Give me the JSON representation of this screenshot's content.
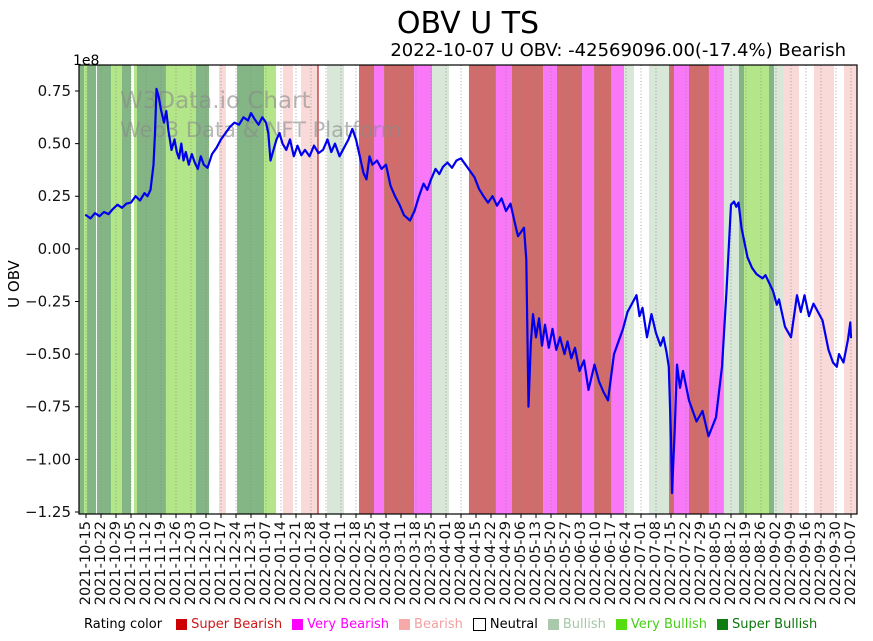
{
  "header": {
    "title": "OBV U TS",
    "subtitle": "2022-10-07 U OBV: -42569096.00(-17.4%) Bearish"
  },
  "watermark": {
    "line1": "W3Data.io Chart",
    "line2": "Web3 Data & NFT Platform"
  },
  "axes": {
    "y_label": "U OBV",
    "offset_label": "1e8",
    "y_ticks": [
      "0.75",
      "0.50",
      "0.25",
      "0.00",
      "−0.25",
      "−0.50",
      "−0.75",
      "−1.00",
      "−1.25"
    ],
    "y_tick_values": [
      0.75,
      0.5,
      0.25,
      0.0,
      -0.25,
      -0.5,
      -0.75,
      -1.0,
      -1.25
    ]
  },
  "chart_data": {
    "type": "line",
    "title": "OBV U TS",
    "subtitle": "2022-10-07 U OBV: -42569096.00(-17.4%) Bearish",
    "xlabel": "",
    "ylabel": "U OBV",
    "y_scale_factor": "1e8",
    "ylim": [
      -1.26,
      0.87
    ],
    "grid": "vertical-dotted",
    "line_color": "#0000ee",
    "final_value": -42569096.0,
    "final_change_pct": -17.4,
    "final_rating": "Bearish",
    "x": [
      "2021-10-15",
      "2021-10-22",
      "2021-10-29",
      "2021-11-05",
      "2021-11-12",
      "2021-11-19",
      "2021-11-26",
      "2021-12-03",
      "2021-12-10",
      "2021-12-17",
      "2021-12-24",
      "2021-12-31",
      "2022-01-07",
      "2022-01-14",
      "2022-01-21",
      "2022-01-28",
      "2022-02-04",
      "2022-02-11",
      "2022-02-18",
      "2022-02-25",
      "2022-03-04",
      "2022-03-11",
      "2022-03-18",
      "2022-03-25",
      "2022-04-01",
      "2022-04-08",
      "2022-04-15",
      "2022-04-22",
      "2022-04-29",
      "2022-05-06",
      "2022-05-13",
      "2022-05-20",
      "2022-05-27",
      "2022-06-03",
      "2022-06-10",
      "2022-06-17",
      "2022-06-24",
      "2022-07-01",
      "2022-07-08",
      "2022-07-15",
      "2022-07-22",
      "2022-07-29",
      "2022-08-05",
      "2022-08-12",
      "2022-08-19",
      "2022-08-26",
      "2022-09-02",
      "2022-09-09",
      "2022-09-16",
      "2022-09-23",
      "2022-09-30",
      "2022-10-07"
    ],
    "weekly_values_1e8": [
      0.16,
      0.17,
      0.2,
      0.22,
      0.26,
      0.66,
      0.46,
      0.44,
      0.39,
      0.52,
      0.6,
      0.645,
      0.6,
      0.49,
      0.48,
      0.46,
      0.51,
      0.46,
      0.52,
      0.41,
      0.4,
      0.18,
      0.22,
      0.33,
      0.4,
      0.43,
      0.3,
      0.23,
      0.18,
      0.08,
      -0.42,
      -0.39,
      -0.46,
      -0.56,
      -0.62,
      -0.52,
      -0.31,
      -0.37,
      -0.4,
      -1.1,
      -0.72,
      -0.78,
      -0.8,
      0.21,
      -0.04,
      -0.13,
      -0.26,
      -0.42,
      -0.29,
      -0.33,
      -0.56,
      -0.43
    ],
    "dense_points_week_value": [
      [
        0,
        0.16
      ],
      [
        0.3,
        0.145
      ],
      [
        0.6,
        0.17
      ],
      [
        0.9,
        0.155
      ],
      [
        1.2,
        0.175
      ],
      [
        1.5,
        0.165
      ],
      [
        1.8,
        0.19
      ],
      [
        2.1,
        0.21
      ],
      [
        2.4,
        0.195
      ],
      [
        2.7,
        0.215
      ],
      [
        3.0,
        0.22
      ],
      [
        3.3,
        0.25
      ],
      [
        3.6,
        0.23
      ],
      [
        3.9,
        0.265
      ],
      [
        4.1,
        0.25
      ],
      [
        4.3,
        0.28
      ],
      [
        4.5,
        0.4
      ],
      [
        4.6,
        0.55
      ],
      [
        4.7,
        0.76
      ],
      [
        4.85,
        0.72
      ],
      [
        5.0,
        0.66
      ],
      [
        5.2,
        0.6
      ],
      [
        5.35,
        0.655
      ],
      [
        5.5,
        0.56
      ],
      [
        5.7,
        0.47
      ],
      [
        5.9,
        0.52
      ],
      [
        6.05,
        0.46
      ],
      [
        6.2,
        0.43
      ],
      [
        6.35,
        0.5
      ],
      [
        6.5,
        0.42
      ],
      [
        6.65,
        0.46
      ],
      [
        6.85,
        0.4
      ],
      [
        7.05,
        0.45
      ],
      [
        7.25,
        0.41
      ],
      [
        7.45,
        0.38
      ],
      [
        7.65,
        0.44
      ],
      [
        7.85,
        0.4
      ],
      [
        8.1,
        0.385
      ],
      [
        8.4,
        0.45
      ],
      [
        8.7,
        0.48
      ],
      [
        9.0,
        0.52
      ],
      [
        9.3,
        0.55
      ],
      [
        9.6,
        0.58
      ],
      [
        9.9,
        0.6
      ],
      [
        10.2,
        0.59
      ],
      [
        10.5,
        0.625
      ],
      [
        10.8,
        0.61
      ],
      [
        11.0,
        0.645
      ],
      [
        11.25,
        0.615
      ],
      [
        11.5,
        0.59
      ],
      [
        11.75,
        0.625
      ],
      [
        12.0,
        0.6
      ],
      [
        12.15,
        0.55
      ],
      [
        12.3,
        0.42
      ],
      [
        12.5,
        0.47
      ],
      [
        12.7,
        0.52
      ],
      [
        12.9,
        0.55
      ],
      [
        13.1,
        0.5
      ],
      [
        13.35,
        0.47
      ],
      [
        13.6,
        0.52
      ],
      [
        13.85,
        0.44
      ],
      [
        14.1,
        0.49
      ],
      [
        14.35,
        0.445
      ],
      [
        14.6,
        0.47
      ],
      [
        14.9,
        0.44
      ],
      [
        15.2,
        0.49
      ],
      [
        15.5,
        0.455
      ],
      [
        15.8,
        0.47
      ],
      [
        16.1,
        0.52
      ],
      [
        16.35,
        0.46
      ],
      [
        16.6,
        0.5
      ],
      [
        16.9,
        0.44
      ],
      [
        17.2,
        0.48
      ],
      [
        17.5,
        0.52
      ],
      [
        17.75,
        0.57
      ],
      [
        18.0,
        0.52
      ],
      [
        18.25,
        0.44
      ],
      [
        18.5,
        0.36
      ],
      [
        18.7,
        0.33
      ],
      [
        18.9,
        0.44
      ],
      [
        19.1,
        0.4
      ],
      [
        19.4,
        0.42
      ],
      [
        19.7,
        0.38
      ],
      [
        20.0,
        0.4
      ],
      [
        20.3,
        0.3
      ],
      [
        20.6,
        0.25
      ],
      [
        20.9,
        0.21
      ],
      [
        21.2,
        0.16
      ],
      [
        21.6,
        0.135
      ],
      [
        21.9,
        0.18
      ],
      [
        22.2,
        0.25
      ],
      [
        22.5,
        0.31
      ],
      [
        22.75,
        0.28
      ],
      [
        23.0,
        0.33
      ],
      [
        23.3,
        0.38
      ],
      [
        23.55,
        0.355
      ],
      [
        23.8,
        0.39
      ],
      [
        24.1,
        0.41
      ],
      [
        24.4,
        0.385
      ],
      [
        24.7,
        0.42
      ],
      [
        25.0,
        0.43
      ],
      [
        25.3,
        0.4
      ],
      [
        25.6,
        0.37
      ],
      [
        25.9,
        0.34
      ],
      [
        26.2,
        0.285
      ],
      [
        26.5,
        0.25
      ],
      [
        26.8,
        0.22
      ],
      [
        27.1,
        0.25
      ],
      [
        27.4,
        0.205
      ],
      [
        27.7,
        0.24
      ],
      [
        28.0,
        0.18
      ],
      [
        28.3,
        0.215
      ],
      [
        28.6,
        0.12
      ],
      [
        28.8,
        0.06
      ],
      [
        29.0,
        0.08
      ],
      [
        29.2,
        0.1
      ],
      [
        29.35,
        -0.05
      ],
      [
        29.5,
        -0.75
      ],
      [
        29.65,
        -0.45
      ],
      [
        29.8,
        -0.31
      ],
      [
        30.0,
        -0.42
      ],
      [
        30.2,
        -0.33
      ],
      [
        30.4,
        -0.46
      ],
      [
        30.6,
        -0.36
      ],
      [
        30.85,
        -0.47
      ],
      [
        31.1,
        -0.38
      ],
      [
        31.35,
        -0.48
      ],
      [
        31.6,
        -0.42
      ],
      [
        31.9,
        -0.5
      ],
      [
        32.1,
        -0.44
      ],
      [
        32.35,
        -0.52
      ],
      [
        32.6,
        -0.47
      ],
      [
        32.9,
        -0.58
      ],
      [
        33.2,
        -0.53
      ],
      [
        33.5,
        -0.67
      ],
      [
        33.9,
        -0.55
      ],
      [
        34.2,
        -0.63
      ],
      [
        34.5,
        -0.68
      ],
      [
        34.8,
        -0.72
      ],
      [
        35.2,
        -0.5
      ],
      [
        35.5,
        -0.44
      ],
      [
        35.8,
        -0.38
      ],
      [
        36.1,
        -0.3
      ],
      [
        36.4,
        -0.26
      ],
      [
        36.7,
        -0.22
      ],
      [
        36.9,
        -0.32
      ],
      [
        37.1,
        -0.28
      ],
      [
        37.4,
        -0.42
      ],
      [
        37.7,
        -0.31
      ],
      [
        38.0,
        -0.4
      ],
      [
        38.3,
        -0.46
      ],
      [
        38.5,
        -0.42
      ],
      [
        38.7,
        -0.49
      ],
      [
        38.85,
        -0.56
      ],
      [
        39.0,
        -0.9
      ],
      [
        39.07,
        -1.16
      ],
      [
        39.25,
        -0.85
      ],
      [
        39.4,
        -0.55
      ],
      [
        39.6,
        -0.66
      ],
      [
        39.8,
        -0.58
      ],
      [
        40.2,
        -0.72
      ],
      [
        40.7,
        -0.82
      ],
      [
        41.1,
        -0.77
      ],
      [
        41.5,
        -0.89
      ],
      [
        42.0,
        -0.8
      ],
      [
        42.4,
        -0.56
      ],
      [
        42.7,
        -0.2
      ],
      [
        43.0,
        0.21
      ],
      [
        43.2,
        0.225
      ],
      [
        43.35,
        0.2
      ],
      [
        43.5,
        0.22
      ],
      [
        43.7,
        0.1
      ],
      [
        43.9,
        0.03
      ],
      [
        44.1,
        -0.04
      ],
      [
        44.4,
        -0.09
      ],
      [
        44.7,
        -0.12
      ],
      [
        45.1,
        -0.14
      ],
      [
        45.3,
        -0.125
      ],
      [
        45.8,
        -0.2
      ],
      [
        46.05,
        -0.265
      ],
      [
        46.2,
        -0.24
      ],
      [
        46.6,
        -0.37
      ],
      [
        47.0,
        -0.42
      ],
      [
        47.4,
        -0.22
      ],
      [
        47.65,
        -0.3
      ],
      [
        47.9,
        -0.22
      ],
      [
        48.2,
        -0.32
      ],
      [
        48.5,
        -0.26
      ],
      [
        49.1,
        -0.34
      ],
      [
        49.5,
        -0.48
      ],
      [
        49.8,
        -0.54
      ],
      [
        50.05,
        -0.56
      ],
      [
        50.2,
        -0.5
      ],
      [
        50.5,
        -0.54
      ],
      [
        50.8,
        -0.43
      ],
      [
        50.95,
        -0.35
      ],
      [
        51.0,
        -0.42
      ]
    ],
    "rating_bands_week_ranges": [
      {
        "start": -0.47,
        "end": -0.13,
        "rating": "super_bullish"
      },
      {
        "start": -0.13,
        "end": 0.07,
        "rating": "very_bullish"
      },
      {
        "start": 0.07,
        "end": 0.67,
        "rating": "super_bullish"
      },
      {
        "start": 0.67,
        "end": 0.73,
        "rating": "neutral"
      },
      {
        "start": 0.73,
        "end": 1.67,
        "rating": "super_bullish"
      },
      {
        "start": 1.67,
        "end": 2.4,
        "rating": "very_bullish"
      },
      {
        "start": 2.4,
        "end": 3.0,
        "rating": "super_bullish"
      },
      {
        "start": 3.0,
        "end": 3.2,
        "rating": "neutral"
      },
      {
        "start": 3.2,
        "end": 3.4,
        "rating": "very_bullish"
      },
      {
        "start": 3.4,
        "end": 5.33,
        "rating": "super_bullish"
      },
      {
        "start": 5.33,
        "end": 7.33,
        "rating": "very_bullish"
      },
      {
        "start": 7.33,
        "end": 8.2,
        "rating": "super_bullish"
      },
      {
        "start": 8.2,
        "end": 8.87,
        "rating": "neutral"
      },
      {
        "start": 8.87,
        "end": 9.33,
        "rating": "bearish"
      },
      {
        "start": 9.33,
        "end": 10.07,
        "rating": "neutral"
      },
      {
        "start": 10.07,
        "end": 11.87,
        "rating": "super_bullish"
      },
      {
        "start": 11.87,
        "end": 12.67,
        "rating": "very_bullish"
      },
      {
        "start": 12.67,
        "end": 13.13,
        "rating": "neutral"
      },
      {
        "start": 13.13,
        "end": 13.8,
        "rating": "bearish"
      },
      {
        "start": 13.8,
        "end": 14.33,
        "rating": "neutral"
      },
      {
        "start": 14.33,
        "end": 15.4,
        "rating": "bearish"
      },
      {
        "start": 15.4,
        "end": 15.53,
        "rating": "super_bearish"
      },
      {
        "start": 15.53,
        "end": 16.07,
        "rating": "neutral"
      },
      {
        "start": 16.07,
        "end": 17.2,
        "rating": "bullish"
      },
      {
        "start": 17.2,
        "end": 18.2,
        "rating": "neutral"
      },
      {
        "start": 18.2,
        "end": 19.2,
        "rating": "super_bearish"
      },
      {
        "start": 19.2,
        "end": 19.87,
        "rating": "very_bearish"
      },
      {
        "start": 19.87,
        "end": 21.87,
        "rating": "super_bearish"
      },
      {
        "start": 21.87,
        "end": 23.07,
        "rating": "very_bearish"
      },
      {
        "start": 23.07,
        "end": 24.2,
        "rating": "bullish"
      },
      {
        "start": 24.2,
        "end": 25.53,
        "rating": "neutral"
      },
      {
        "start": 25.53,
        "end": 27.33,
        "rating": "super_bearish"
      },
      {
        "start": 27.33,
        "end": 28.4,
        "rating": "very_bearish"
      },
      {
        "start": 28.4,
        "end": 30.47,
        "rating": "super_bearish"
      },
      {
        "start": 30.47,
        "end": 31.4,
        "rating": "very_bearish"
      },
      {
        "start": 31.4,
        "end": 33.07,
        "rating": "super_bearish"
      },
      {
        "start": 33.07,
        "end": 33.87,
        "rating": "very_bearish"
      },
      {
        "start": 33.87,
        "end": 35.0,
        "rating": "super_bearish"
      },
      {
        "start": 35.0,
        "end": 35.87,
        "rating": "very_bearish"
      },
      {
        "start": 35.87,
        "end": 36.53,
        "rating": "bullish"
      },
      {
        "start": 36.53,
        "end": 37.53,
        "rating": "neutral"
      },
      {
        "start": 37.53,
        "end": 38.87,
        "rating": "bullish"
      },
      {
        "start": 38.87,
        "end": 39.2,
        "rating": "super_bearish"
      },
      {
        "start": 39.2,
        "end": 40.2,
        "rating": "very_bearish"
      },
      {
        "start": 40.2,
        "end": 41.53,
        "rating": "super_bearish"
      },
      {
        "start": 41.53,
        "end": 42.53,
        "rating": "very_bearish"
      },
      {
        "start": 42.53,
        "end": 43.53,
        "rating": "bullish"
      },
      {
        "start": 43.53,
        "end": 43.87,
        "rating": "super_bullish"
      },
      {
        "start": 43.87,
        "end": 45.53,
        "rating": "very_bullish"
      },
      {
        "start": 45.53,
        "end": 45.87,
        "rating": "super_bullish"
      },
      {
        "start": 45.87,
        "end": 46.53,
        "rating": "bullish"
      },
      {
        "start": 46.53,
        "end": 47.53,
        "rating": "bearish"
      },
      {
        "start": 47.53,
        "end": 48.53,
        "rating": "neutral"
      },
      {
        "start": 48.53,
        "end": 49.87,
        "rating": "bearish"
      },
      {
        "start": 49.87,
        "end": 50.53,
        "rating": "neutral"
      },
      {
        "start": 50.53,
        "end": 51.4,
        "rating": "bearish"
      }
    ]
  },
  "ratings": {
    "legend_title": "Rating color",
    "band_colors": {
      "super_bearish": "#d06c6c",
      "very_bearish": "#f878f8",
      "bearish": "#fad9d9",
      "neutral": "#ffffff",
      "bullish": "#d9e7d9",
      "very_bullish": "#b3e688",
      "super_bullish": "#84b584"
    },
    "legend": [
      {
        "label": "Super Bearish",
        "color": "#cc0000",
        "text_color": "#cc1a1a",
        "edge": "none"
      },
      {
        "label": "Very Bearish",
        "color": "#ff00ff",
        "text_color": "#ff00ff",
        "edge": "none"
      },
      {
        "label": "Bearish",
        "color": "#f5a9a9",
        "text_color": "#f2a0a0",
        "edge": "none"
      },
      {
        "label": "Neutral",
        "color": "#ffffff",
        "text_color": "#000000",
        "edge": "#000000"
      },
      {
        "label": "Bullish",
        "color": "#aac9aa",
        "text_color": "#a5c6a5",
        "edge": "none"
      },
      {
        "label": "Very Bullish",
        "color": "#55dd11",
        "text_color": "#47cf17",
        "edge": "none"
      },
      {
        "label": "Super Bullish",
        "color": "#0e7c0e",
        "text_color": "#0b770b",
        "edge": "none"
      }
    ]
  }
}
